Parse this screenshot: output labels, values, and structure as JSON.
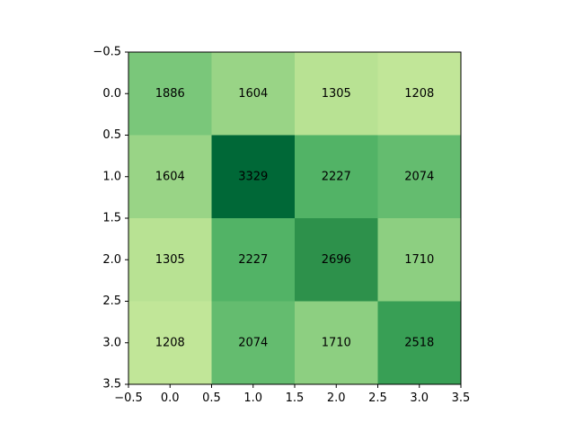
{
  "chart_data": {
    "type": "heatmap",
    "title": "",
    "xlabel": "",
    "ylabel": "",
    "colormap": "YlGn",
    "color_range": [
      0,
      3800
    ],
    "xlim": [
      -0.5,
      3.5
    ],
    "ylim": [
      3.5,
      -0.5
    ],
    "x_ticks": [
      "−0.5",
      "0.0",
      "0.5",
      "1.0",
      "1.5",
      "2.0",
      "2.5",
      "3.0",
      "3.5"
    ],
    "y_ticks": [
      "−0.5",
      "0.0",
      "0.5",
      "1.0",
      "1.5",
      "2.0",
      "2.5",
      "3.0",
      "3.5"
    ],
    "values": [
      [
        1886,
        1604,
        1305,
        1208
      ],
      [
        1604,
        3329,
        2227,
        2074
      ],
      [
        1305,
        2227,
        2696,
        1710
      ],
      [
        1208,
        2074,
        1710,
        2518
      ]
    ],
    "grid": false,
    "legend": "none"
  }
}
